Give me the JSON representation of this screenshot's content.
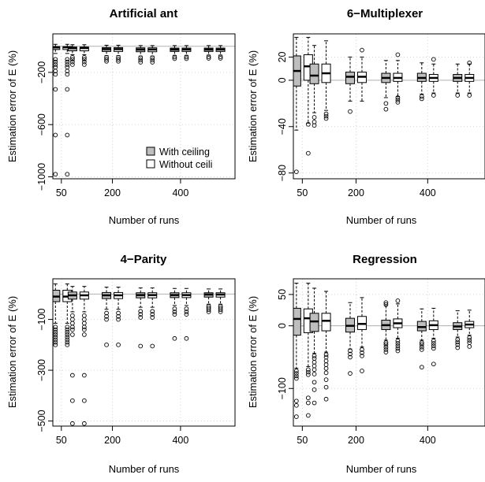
{
  "chart_data": [
    {
      "type": "box",
      "title": "Artificial ant",
      "xlabel": "Number of runs",
      "ylabel": "Estimation error of E (%)",
      "xlim": [
        25,
        560
      ],
      "ylim": [
        -1015,
        95
      ],
      "xticks": [
        50,
        200,
        400
      ],
      "yticks": [
        -200,
        -600,
        -1000
      ],
      "grid": true,
      "reference_line": 0,
      "legend": {
        "placement": "bottom-right",
        "entries": [
          {
            "label": "With ceiling",
            "fill": "#bebebe"
          },
          {
            "label": "Without ceili",
            "fill": "#ffffff"
          }
        ]
      },
      "groups": [
        {
          "x": 50,
          "with": {
            "q1": -25,
            "med": -8,
            "q3": -3,
            "lo": -55,
            "hi": 15,
            "out": [
              -100,
              -120,
              -140,
              -160,
              -190,
              -215,
              -330,
              -680,
              -980
            ]
          },
          "without": {
            "q1": -25,
            "med": -8,
            "q3": -3,
            "lo": -55,
            "hi": 15,
            "out": [
              -100,
              -120,
              -140,
              -160,
              -190,
              -215,
              -330,
              -680,
              -980
            ]
          }
        },
        {
          "x": 100,
          "with": {
            "q1": -35,
            "med": -14,
            "q3": -6,
            "lo": -65,
            "hi": 12,
            "out": [
              -85,
              -100,
              -120,
              -140
            ]
          },
          "without": {
            "q1": -35,
            "med": -14,
            "q3": -6,
            "lo": -65,
            "hi": 12,
            "out": [
              -85,
              -100,
              -120,
              -140
            ]
          }
        },
        {
          "x": 200,
          "with": {
            "q1": -40,
            "med": -22,
            "q3": -10,
            "lo": -72,
            "hi": 8,
            "out": [
              -85,
              -100,
              -115
            ]
          },
          "without": {
            "q1": -40,
            "med": -22,
            "q3": -10,
            "lo": -72,
            "hi": 8,
            "out": [
              -85,
              -100,
              -115
            ]
          }
        },
        {
          "x": 300,
          "with": {
            "q1": -42,
            "med": -25,
            "q3": -12,
            "lo": -75,
            "hi": 5,
            "out": [
              -88,
              -105,
              -122
            ]
          },
          "without": {
            "q1": -42,
            "med": -25,
            "q3": -12,
            "lo": -75,
            "hi": 5,
            "out": [
              -88,
              -105,
              -122
            ]
          }
        },
        {
          "x": 400,
          "with": {
            "q1": -40,
            "med": -25,
            "q3": -14,
            "lo": -70,
            "hi": 5,
            "out": [
              -82,
              -95
            ]
          },
          "without": {
            "q1": -40,
            "med": -25,
            "q3": -14,
            "lo": -70,
            "hi": 5,
            "out": [
              -82,
              -95
            ]
          }
        },
        {
          "x": 500,
          "with": {
            "q1": -40,
            "med": -25,
            "q3": -14,
            "lo": -68,
            "hi": 5,
            "out": [
              -80,
              -92
            ]
          },
          "without": {
            "q1": -40,
            "med": -25,
            "q3": -14,
            "lo": -68,
            "hi": 5,
            "out": [
              -80,
              -92
            ]
          }
        }
      ]
    },
    {
      "type": "box",
      "title": "6−Multiplexer",
      "xlabel": "Number of runs",
      "ylabel": "Estimation error of E (%)",
      "xlim": [
        25,
        560
      ],
      "ylim": [
        -85,
        40
      ],
      "xticks": [
        50,
        200,
        400
      ],
      "yticks": [
        20,
        0,
        -40,
        -80
      ],
      "grid": true,
      "reference_line": 0,
      "groups": [
        {
          "x": 50,
          "with": {
            "q1": -5,
            "med": 8,
            "q3": 21,
            "lo": -43,
            "hi": 37,
            "out": [
              -79
            ]
          },
          "without": {
            "q1": 0,
            "med": 12,
            "q3": 22,
            "lo": -37,
            "hi": 37,
            "out": [
              -38,
              -63
            ]
          }
        },
        {
          "x": 100,
          "with": {
            "q1": -3,
            "med": 4,
            "q3": 14,
            "lo": -28,
            "hi": 30,
            "out": [
              -32,
              -36,
              -39
            ]
          },
          "without": {
            "q1": -2,
            "med": 6,
            "q3": 14,
            "lo": -26,
            "hi": 34,
            "out": [
              -29,
              -31,
              -33
            ]
          }
        },
        {
          "x": 200,
          "with": {
            "q1": -3,
            "med": 3,
            "q3": 7,
            "lo": -18,
            "hi": 20,
            "out": [
              -27
            ]
          },
          "without": {
            "q1": -2,
            "med": 3,
            "q3": 7,
            "lo": -18,
            "hi": 20,
            "out": [
              26
            ]
          }
        },
        {
          "x": 300,
          "with": {
            "q1": -2,
            "med": 2,
            "q3": 6,
            "lo": -15,
            "hi": 17,
            "out": [
              -20,
              -25
            ]
          },
          "without": {
            "q1": -1,
            "med": 2,
            "q3": 6,
            "lo": -14,
            "hi": 17,
            "out": [
              -15,
              -17,
              -19,
              22
            ]
          }
        },
        {
          "x": 400,
          "with": {
            "q1": -1,
            "med": 2,
            "q3": 6,
            "lo": -12,
            "hi": 15,
            "out": [
              -14,
              -16
            ]
          },
          "without": {
            "q1": -1,
            "med": 2,
            "q3": 5,
            "lo": -11,
            "hi": 14,
            "out": [
              -13,
              18
            ]
          }
        },
        {
          "x": 500,
          "with": {
            "q1": -1,
            "med": 2,
            "q3": 5,
            "lo": -11,
            "hi": 14,
            "out": [
              -13
            ]
          },
          "without": {
            "q1": -1,
            "med": 2,
            "q3": 5,
            "lo": -11,
            "hi": 14,
            "out": [
              -13,
              15
            ]
          }
        }
      ]
    },
    {
      "type": "box",
      "title": "4−Parity",
      "xlabel": "Number of runs",
      "ylabel": "Estimation error of E (%)",
      "xlim": [
        25,
        560
      ],
      "ylim": [
        -520,
        60
      ],
      "xticks": [
        50,
        200,
        400
      ],
      "yticks": [
        -100,
        -300,
        -500
      ],
      "grid": true,
      "reference_line": 0,
      "groups": [
        {
          "x": 50,
          "with": {
            "q1": -30,
            "med": -10,
            "q3": 15,
            "lo": -115,
            "hi": 40,
            "out": [
              -130,
              -140,
              -150,
              -160,
              -170,
              -180,
              -190,
              -200
            ]
          },
          "without": {
            "q1": -30,
            "med": -10,
            "q3": 15,
            "lo": -115,
            "hi": 40,
            "out": [
              -130,
              -140,
              -150,
              -160,
              -170,
              -180,
              -190,
              -200
            ]
          }
        },
        {
          "x": 100,
          "with": {
            "q1": -20,
            "med": -5,
            "q3": 8,
            "lo": -70,
            "hi": 30,
            "out": [
              -85,
              -100,
              -115,
              -130,
              -140,
              -160,
              -320,
              -420,
              -510
            ]
          },
          "without": {
            "q1": -20,
            "med": -5,
            "q3": 8,
            "lo": -70,
            "hi": 30,
            "out": [
              -85,
              -100,
              -115,
              -130,
              -140,
              -160,
              -320,
              -420,
              -510
            ]
          }
        },
        {
          "x": 200,
          "with": {
            "q1": -18,
            "med": -5,
            "q3": 6,
            "lo": -60,
            "hi": 27,
            "out": [
              -75,
              -88,
              -100,
              -200
            ]
          },
          "without": {
            "q1": -18,
            "med": -5,
            "q3": 6,
            "lo": -60,
            "hi": 27,
            "out": [
              -75,
              -88,
              -100,
              -200
            ]
          }
        },
        {
          "x": 300,
          "with": {
            "q1": -15,
            "med": -4,
            "q3": 5,
            "lo": -52,
            "hi": 24,
            "out": [
              -68,
              -80,
              -92,
              -205
            ]
          },
          "without": {
            "q1": -15,
            "med": -4,
            "q3": 5,
            "lo": -52,
            "hi": 24,
            "out": [
              -68,
              -80,
              -92,
              -205
            ]
          }
        },
        {
          "x": 400,
          "with": {
            "q1": -14,
            "med": -4,
            "q3": 5,
            "lo": -45,
            "hi": 22,
            "out": [
              -58,
              -70,
              -80,
              -175
            ]
          },
          "without": {
            "q1": -14,
            "med": -4,
            "q3": 5,
            "lo": -45,
            "hi": 22,
            "out": [
              -58,
              -70,
              -80,
              -175
            ]
          }
        },
        {
          "x": 500,
          "with": {
            "q1": -12,
            "med": -2,
            "q3": 5,
            "lo": -40,
            "hi": 20,
            "out": [
              -48,
              -55,
              -62,
              -70
            ]
          },
          "without": {
            "q1": -12,
            "med": -2,
            "q3": 5,
            "lo": -40,
            "hi": 20,
            "out": [
              -48,
              -55,
              -62,
              -70
            ]
          }
        }
      ]
    },
    {
      "type": "box",
      "title": "Regression",
      "xlabel": "Number of runs",
      "ylabel": "Estimation error of E (%)",
      "xlim": [
        25,
        560
      ],
      "ylim": [
        -160,
        75
      ],
      "xticks": [
        50,
        200,
        400
      ],
      "yticks": [
        50,
        0,
        -100
      ],
      "grid": true,
      "reference_line": 0,
      "groups": [
        {
          "x": 50,
          "with": {
            "q1": -15,
            "med": 11,
            "q3": 28,
            "lo": -68,
            "hi": 68,
            "out": [
              -72,
              -76,
              -80,
              -84,
              -120,
              -127,
              -145
            ]
          },
          "without": {
            "q1": -11,
            "med": 12,
            "q3": 27,
            "lo": -65,
            "hi": 68,
            "out": [
              -70,
              -74,
              -78,
              -115,
              -123,
              -143
            ]
          }
        },
        {
          "x": 100,
          "with": {
            "q1": -9,
            "med": 7,
            "q3": 20,
            "lo": -44,
            "hi": 60,
            "out": [
              -48,
              -52,
              -58,
              -64,
              -70,
              -77,
              -90,
              -102,
              -123
            ]
          },
          "without": {
            "q1": -8,
            "med": 8,
            "q3": 20,
            "lo": -42,
            "hi": 55,
            "out": [
              -46,
              -50,
              -56,
              -62,
              -68,
              -75,
              -86,
              -98,
              -117
            ]
          }
        },
        {
          "x": 200,
          "with": {
            "q1": -10,
            "med": 0,
            "q3": 12,
            "lo": -37,
            "hi": 37,
            "out": [
              -40,
              -45,
              -50,
              -76
            ]
          },
          "without": {
            "q1": -6,
            "med": 3,
            "q3": 15,
            "lo": -34,
            "hi": 45,
            "out": [
              -38,
              -43,
              -48,
              -72
            ]
          }
        },
        {
          "x": 300,
          "with": {
            "q1": -6,
            "med": 1,
            "q3": 9,
            "lo": -23,
            "hi": 32,
            "out": [
              -27,
              -30,
              -34,
              -38,
              -42,
              34,
              37
            ]
          },
          "without": {
            "q1": -3,
            "med": 4,
            "q3": 11,
            "lo": -20,
            "hi": 35,
            "out": [
              -24,
              -28,
              -32,
              -36,
              -40,
              40
            ]
          }
        },
        {
          "x": 400,
          "with": {
            "q1": -8,
            "med": -2,
            "q3": 7,
            "lo": -23,
            "hi": 27,
            "out": [
              -27,
              -30,
              -34,
              -38,
              -66
            ]
          },
          "without": {
            "q1": -6,
            "med": 1,
            "q3": 8,
            "lo": -20,
            "hi": 28,
            "out": [
              -24,
              -28,
              -32,
              -36,
              -61
            ]
          }
        },
        {
          "x": 500,
          "with": {
            "q1": -6,
            "med": -1,
            "q3": 5,
            "lo": -18,
            "hi": 24,
            "out": [
              -22,
              -26,
              -30,
              -35
            ]
          },
          "without": {
            "q1": -3,
            "med": 2,
            "q3": 7,
            "lo": -15,
            "hi": 25,
            "out": [
              -19,
              -23,
              -27,
              -33
            ]
          }
        }
      ]
    }
  ],
  "style": {
    "with_fill": "#bebebe",
    "without_fill": "#ffffff",
    "stroke": "#000000",
    "grid": "#d3d3d3",
    "reference": "#b0b0b0"
  }
}
